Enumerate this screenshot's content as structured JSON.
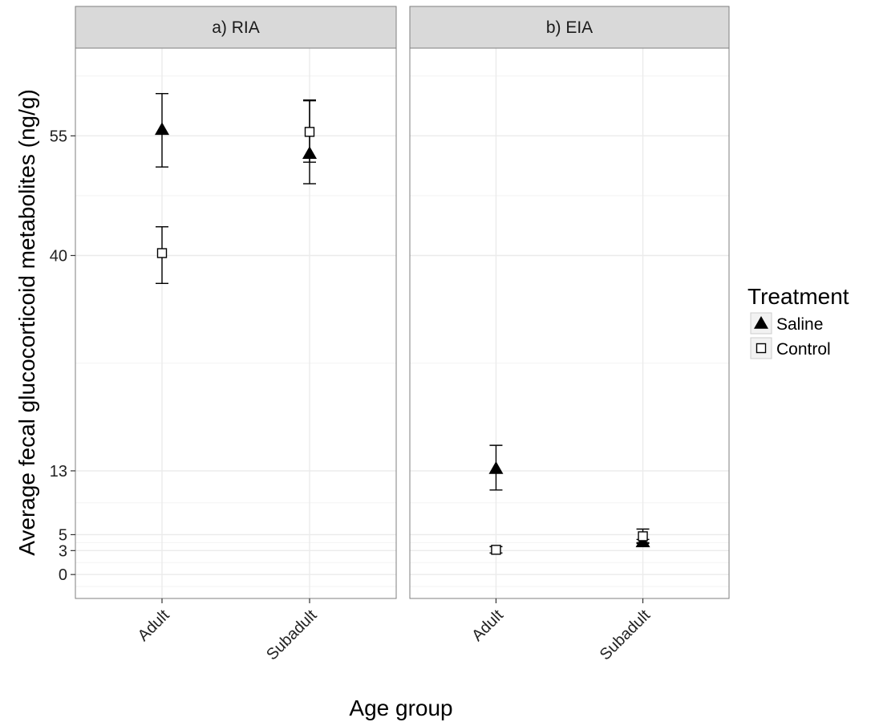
{
  "chart_data": {
    "type": "scatter",
    "facets": [
      {
        "label": "a) RIA"
      },
      {
        "label": "b) EIA"
      }
    ],
    "categories": [
      "Adult",
      "Subadult"
    ],
    "ylabel": "Average fecal glucocorticoid metabolites (ng/g)",
    "xlabel": "Age group",
    "yticks": [
      0,
      3,
      5,
      13,
      40,
      55
    ],
    "ylim": [
      -3,
      66
    ],
    "grid": true,
    "legend": {
      "title": "Treatment",
      "position": "right",
      "entries": [
        {
          "name": "Saline",
          "shape": "filled-triangle"
        },
        {
          "name": "Control",
          "shape": "open-square"
        }
      ]
    },
    "series": [
      {
        "name": "Saline",
        "shape": "filled-triangle",
        "color": "#000000",
        "points": [
          {
            "facet": "a) RIA",
            "x": "Adult",
            "y": 55.8,
            "ymin": 51.1,
            "ymax": 60.3
          },
          {
            "facet": "a) RIA",
            "x": "Subadult",
            "y": 52.8,
            "ymin": 49.0,
            "ymax": 59.4
          },
          {
            "facet": "b) EIA",
            "x": "Adult",
            "y": 13.3,
            "ymin": 10.6,
            "ymax": 16.2
          },
          {
            "facet": "b) EIA",
            "x": "Subadult",
            "y": 4.1,
            "ymin": 3.9,
            "ymax": 4.4
          }
        ]
      },
      {
        "name": "Control",
        "shape": "open-square",
        "color": "#000000",
        "points": [
          {
            "facet": "a) RIA",
            "x": "Adult",
            "y": 40.3,
            "ymin": 36.5,
            "ymax": 43.6
          },
          {
            "facet": "a) RIA",
            "x": "Subadult",
            "y": 55.5,
            "ymin": 51.7,
            "ymax": 59.5
          },
          {
            "facet": "b) EIA",
            "x": "Adult",
            "y": 3.1,
            "ymin": 2.7,
            "ymax": 3.5
          },
          {
            "facet": "b) EIA",
            "x": "Subadult",
            "y": 4.8,
            "ymin": 4.0,
            "ymax": 5.7
          }
        ]
      }
    ],
    "colors": {
      "panel_background": "#ffffff",
      "strip_background": "#d9d9d9",
      "grid": "#ebebeb",
      "border": "#7f7f7f",
      "marks": "#000000"
    }
  }
}
